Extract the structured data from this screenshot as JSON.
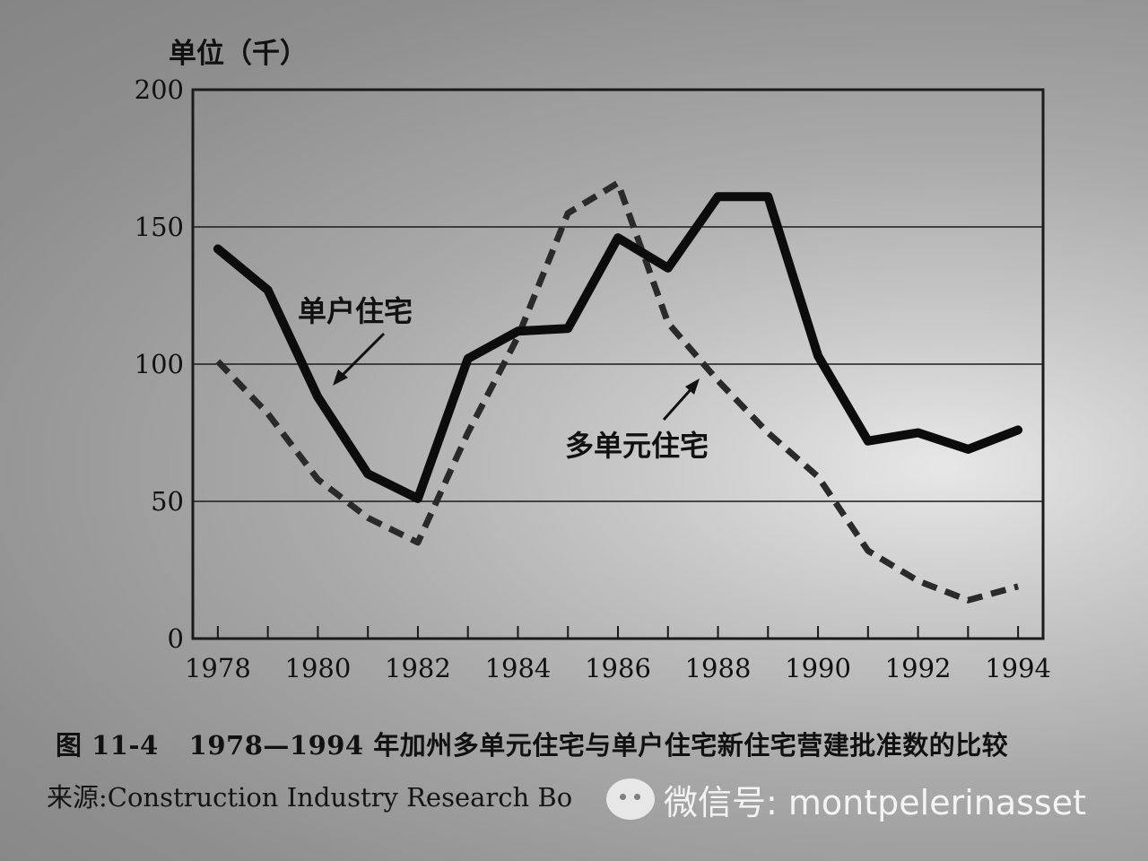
{
  "chart_data": {
    "type": "line",
    "ylabel": "单位（千）",
    "ylim": [
      0,
      200
    ],
    "yticks": [
      0,
      50,
      100,
      150,
      200
    ],
    "x": [
      1978,
      1979,
      1980,
      1981,
      1982,
      1983,
      1984,
      1985,
      1986,
      1987,
      1988,
      1989,
      1990,
      1991,
      1992,
      1993,
      1994
    ],
    "xticks": [
      1978,
      1980,
      1982,
      1984,
      1986,
      1988,
      1990,
      1992,
      1994
    ],
    "xlim": [
      1977.5,
      1994.5
    ],
    "grid": "horizontal",
    "series": [
      {
        "name": "单户住宅",
        "style": "solid",
        "values": [
          142,
          127,
          88,
          60,
          51,
          102,
          112,
          113,
          146,
          135,
          161,
          161,
          103,
          72,
          75,
          69,
          76
        ]
      },
      {
        "name": "多单元住宅",
        "style": "dashed",
        "values": [
          101,
          82,
          58,
          44,
          35,
          75,
          110,
          155,
          166,
          115,
          94,
          75,
          59,
          32,
          21,
          14,
          19
        ]
      }
    ]
  },
  "caption": {
    "number": "图 11-4",
    "text": "1978—1994 年加州多单元住宅与单户住宅新住宅营建批准数的比较"
  },
  "source": "来源:Construction Industry Research Bo",
  "watermark": "微信号: montpelerinasset",
  "colors": {
    "line": "#0c0c0c",
    "dashed": "#2a2a2a",
    "grid": "#1a1a1a"
  }
}
